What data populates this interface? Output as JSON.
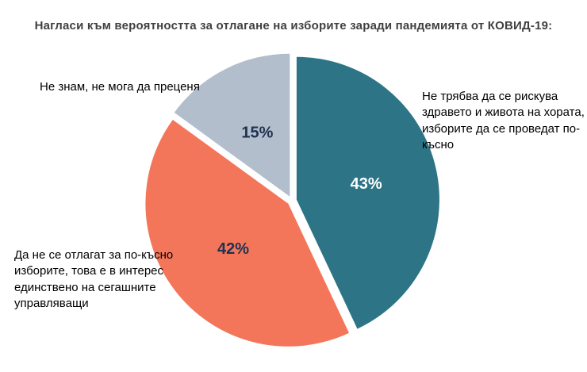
{
  "title": "Нагласи към вероятността за отлагане на изборите заради пандемията от КОВИД-19:",
  "chart_data": {
    "type": "pie",
    "title": "Нагласи към вероятността за отлагане на изборите заради пандемията от КОВИД-19:",
    "start_angle_deg": 0,
    "direction": "clockwise",
    "legend_position": "none",
    "slices": [
      {
        "label": "Не трябва да се рискува здравето и живота на хората, изборите да се проведат по-късно",
        "value": 43,
        "pct_label": "43%",
        "color": "#2d7486",
        "pct_color": "#ffffff"
      },
      {
        "label": "Да не се отлагат за по-късно изборите, това е в интерес единствено на сегашните управляващи",
        "value": 42,
        "pct_label": "42%",
        "color": "#f3765a",
        "pct_color": "#1f3250"
      },
      {
        "label": "Не знам, не мога да преценя",
        "value": 15,
        "pct_label": "15%",
        "color": "#b2becb",
        "pct_color": "#1f3250"
      }
    ]
  }
}
